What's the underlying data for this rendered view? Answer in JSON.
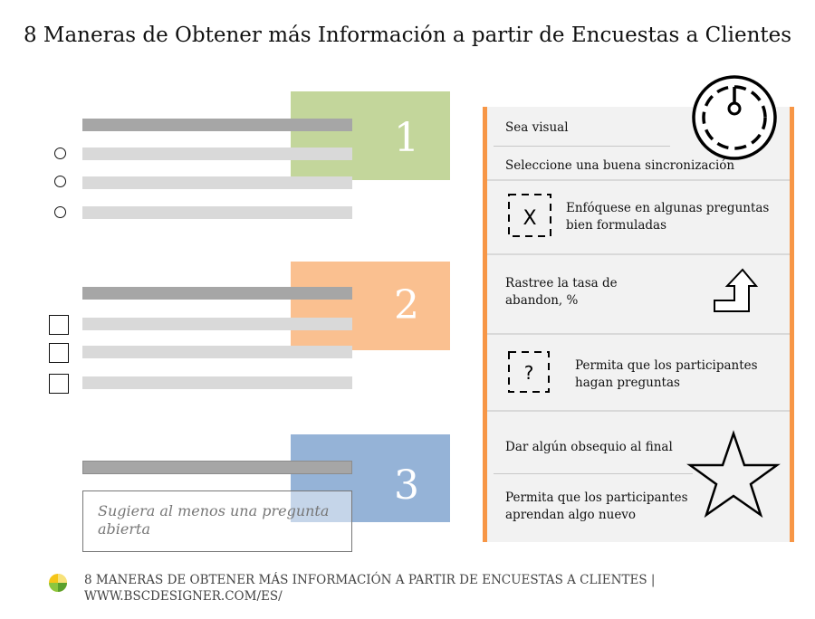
{
  "title": "8 Maneras de Obtener más Información a partir de Encuestas a Clientes",
  "blocks": [
    {
      "number": "1",
      "color": "#c3d69b"
    },
    {
      "number": "2",
      "color": "#fac090"
    },
    {
      "number": "3",
      "color": "#95b3d7"
    }
  ],
  "open_question": "Sugiera al menos una pregunta abierta",
  "tips": {
    "t1": "Sea visual",
    "t2": "Seleccione una buena sincronización",
    "t3": "Enfóquese en algunas preguntas bien formuladas",
    "t3_icon_letter": "X",
    "t4": "Rastree la tasa de abandon, %",
    "t5": "Permita que los participantes hagan preguntas",
    "t5_icon_letter": "?",
    "t6": "Dar algún obsequio al final",
    "t7": "Permita que los participantes aprendan algo nuevo"
  },
  "icons": {
    "clock": "clock-icon",
    "x_box": "dashed-x-box-icon",
    "arrow": "turn-up-arrow-icon",
    "q_box": "dashed-question-box-icon",
    "star": "star-icon",
    "logo": "bsc-designer-logo-icon"
  },
  "footer": {
    "line1": "8 MANERAS DE OBTENER MÁS INFORMACIÓN A PARTIR DE ENCUESTAS A CLIENTES |",
    "line2": "WWW.BSCDESIGNER.COM/ES/"
  },
  "colors": {
    "accent_orange": "#f79646",
    "panel_bg": "#f2f2f2",
    "bar_dark": "#a6a6a6",
    "bar_light": "#d9d9d9"
  }
}
